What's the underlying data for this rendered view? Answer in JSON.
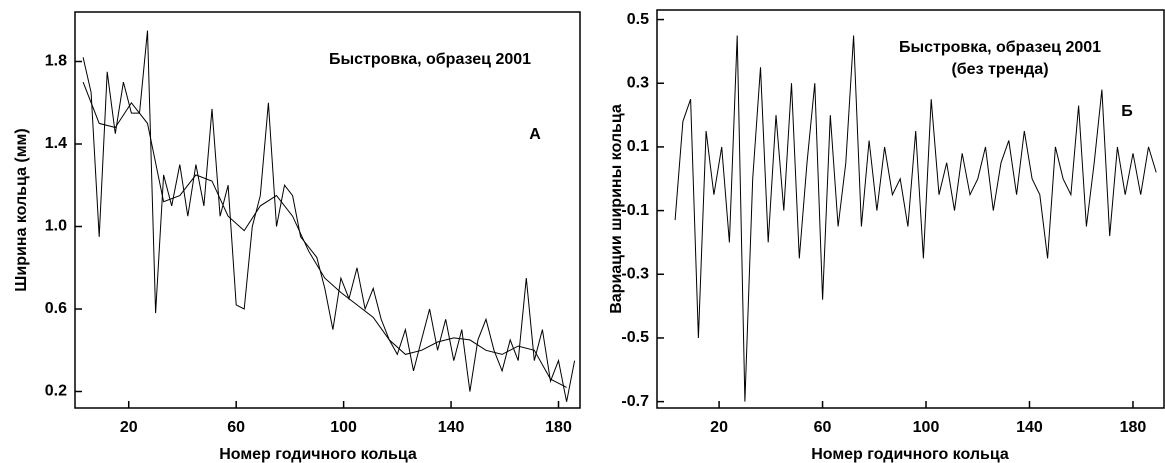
{
  "chart_data": [
    {
      "type": "line",
      "title": "Быстровка, образец 2001",
      "label": "А",
      "x_label": "Номер годичного кольца",
      "y_label": "Ширина кольца (мм)",
      "xlim": [
        0,
        188
      ],
      "ylim": [
        0.12,
        2.04
      ],
      "xticks": [
        20,
        60,
        100,
        140,
        180
      ],
      "yticks": [
        0.2,
        0.6,
        {
          "value": 1,
          "label": "1.0"
        },
        1.4,
        1.8
      ],
      "series": [
        {
          "color": "#000000",
          "x": [
            3,
            6,
            9,
            12,
            15,
            18,
            21,
            24,
            27,
            30,
            33,
            36,
            39,
            42,
            45,
            48,
            51,
            54,
            57,
            60,
            63,
            66,
            69,
            72,
            75,
            78,
            81,
            84,
            87,
            90,
            93,
            96,
            99,
            102,
            105,
            108,
            111,
            114,
            117,
            120,
            123,
            126,
            129,
            132,
            135,
            138,
            141,
            144,
            147,
            150,
            153,
            156,
            159,
            162,
            165,
            168,
            171,
            174,
            177,
            180,
            183,
            186
          ],
          "values": [
            1.82,
            1.65,
            0.95,
            1.75,
            1.45,
            1.7,
            1.55,
            1.55,
            1.95,
            0.58,
            1.25,
            1.1,
            1.3,
            1.05,
            1.3,
            1.1,
            1.57,
            1.05,
            1.2,
            0.62,
            0.6,
            1.0,
            1.15,
            1.6,
            1.0,
            1.2,
            1.15,
            0.95,
            0.9,
            0.85,
            0.7,
            0.5,
            0.75,
            0.65,
            0.8,
            0.6,
            0.7,
            0.55,
            0.45,
            0.38,
            0.5,
            0.3,
            0.45,
            0.6,
            0.4,
            0.55,
            0.35,
            0.5,
            0.2,
            0.45,
            0.55,
            0.4,
            0.3,
            0.45,
            0.35,
            0.75,
            0.35,
            0.5,
            0.25,
            0.35,
            0.15,
            0.35
          ]
        },
        {
          "color": "#000000",
          "x": [
            3,
            9,
            15,
            21,
            27,
            33,
            39,
            45,
            51,
            57,
            63,
            69,
            75,
            81,
            87,
            93,
            99,
            105,
            111,
            117,
            123,
            129,
            135,
            141,
            147,
            153,
            159,
            165,
            171,
            177,
            183
          ],
          "values": [
            1.7,
            1.5,
            1.48,
            1.6,
            1.5,
            1.12,
            1.15,
            1.25,
            1.22,
            1.05,
            0.98,
            1.1,
            1.15,
            1.05,
            0.88,
            0.75,
            0.68,
            0.62,
            0.56,
            0.45,
            0.38,
            0.4,
            0.44,
            0.46,
            0.45,
            0.4,
            0.38,
            0.42,
            0.4,
            0.26,
            0.22
          ]
        }
      ]
    },
    {
      "type": "line",
      "title": "Быстровка, образец 2001",
      "subtitle": "(без тренда)",
      "label": "Б",
      "x_label": "Номер годичного кольца",
      "y_label": "Вариации ширины кольца",
      "xlim": [
        -4,
        192
      ],
      "ylim": [
        -0.72,
        0.53
      ],
      "xticks": [
        20,
        60,
        100,
        140,
        180
      ],
      "yticks": [
        0.5,
        0.3,
        0.1,
        -0.1,
        -0.3,
        -0.5,
        -0.7
      ],
      "series": [
        {
          "color": "#000000",
          "x": [
            3,
            6,
            9,
            12,
            15,
            18,
            21,
            24,
            27,
            30,
            33,
            36,
            39,
            42,
            45,
            48,
            51,
            54,
            57,
            60,
            63,
            66,
            69,
            72,
            75,
            78,
            81,
            84,
            87,
            90,
            93,
            96,
            99,
            102,
            105,
            108,
            111,
            114,
            117,
            120,
            123,
            126,
            129,
            132,
            135,
            138,
            141,
            144,
            147,
            150,
            153,
            156,
            159,
            162,
            165,
            168,
            171,
            174,
            177,
            180,
            183,
            186,
            189
          ],
          "values": [
            -0.13,
            0.18,
            0.25,
            -0.5,
            0.15,
            -0.05,
            0.1,
            -0.2,
            0.45,
            -0.7,
            0.0,
            0.35,
            -0.2,
            0.2,
            -0.1,
            0.3,
            -0.25,
            0.05,
            0.3,
            -0.38,
            0.2,
            -0.15,
            0.05,
            0.45,
            -0.15,
            0.12,
            -0.1,
            0.1,
            -0.05,
            0.0,
            -0.15,
            0.15,
            -0.25,
            0.25,
            -0.05,
            0.05,
            -0.1,
            0.08,
            -0.05,
            0.0,
            0.1,
            -0.1,
            0.05,
            0.12,
            -0.05,
            0.15,
            0.0,
            -0.05,
            -0.25,
            0.1,
            0.0,
            -0.05,
            0.23,
            -0.15,
            0.05,
            0.28,
            -0.18,
            0.1,
            -0.05,
            0.08,
            -0.05,
            0.1,
            0.02
          ]
        }
      ]
    }
  ]
}
